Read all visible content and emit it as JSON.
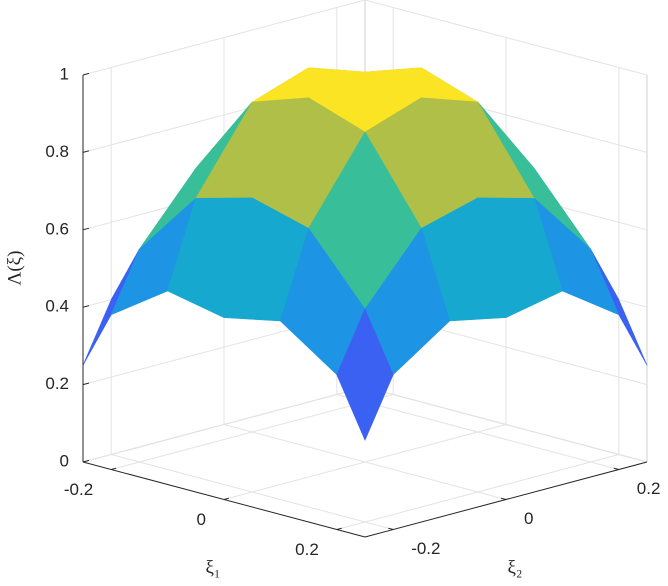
{
  "chart_data": {
    "type": "surface",
    "xlabel": "ξ₁",
    "ylabel": "ξ₂",
    "zlabel": "Λ(ξ)",
    "x": [
      -0.25,
      -0.2,
      -0.1,
      0,
      0.1,
      0.2,
      0.25
    ],
    "y": [
      -0.25,
      -0.2,
      -0.1,
      0,
      0.1,
      0.2,
      0.25
    ],
    "z": [
      [
        0.25,
        0.4,
        0.5,
        0.47,
        0.5,
        0.4,
        0.25
      ],
      [
        0.4,
        0.55,
        0.72,
        0.76,
        0.72,
        0.55,
        0.4
      ],
      [
        0.5,
        0.72,
        0.93,
        0.98,
        0.93,
        0.72,
        0.5
      ],
      [
        0.47,
        0.76,
        0.98,
        1,
        0.98,
        0.76,
        0.47
      ],
      [
        0.5,
        0.72,
        0.93,
        0.98,
        0.93,
        0.72,
        0.5
      ],
      [
        0.4,
        0.55,
        0.72,
        0.76,
        0.72,
        0.55,
        0.4
      ],
      [
        0.25,
        0.4,
        0.5,
        0.47,
        0.5,
        0.4,
        0.25
      ]
    ],
    "xlim": [
      -0.25,
      0.25
    ],
    "ylim": [
      -0.25,
      0.25
    ],
    "zlim": [
      0,
      1
    ],
    "xticks": [
      -0.2,
      0,
      0.2
    ],
    "yticks": [
      -0.2,
      0,
      0.2
    ],
    "zticks": [
      0,
      0.2,
      0.4,
      0.6,
      0.8,
      1
    ],
    "grid": true,
    "colormap": "parula"
  }
}
